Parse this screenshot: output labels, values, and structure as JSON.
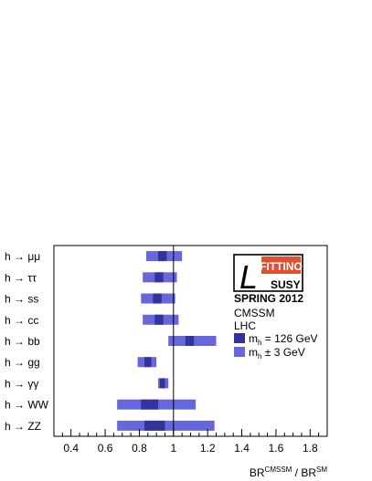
{
  "chart_data": {
    "type": "bar",
    "orientation": "horizontal-range",
    "xlabel": {
      "base": "BR",
      "sup1": "CMSSM",
      "sep": " / BR",
      "sup2": "SM"
    },
    "xlim": [
      0.3,
      1.9
    ],
    "xticks": [
      0.4,
      0.6,
      0.8,
      1.0,
      1.2,
      1.4,
      1.6,
      1.8
    ],
    "xtick_labels": [
      "0.4",
      "0.6",
      "0.8",
      "1",
      "1.2",
      "1.4",
      "1.6",
      "1.8"
    ],
    "reference_line": 1.0,
    "categories": [
      {
        "prefix": "h →",
        "final": "μμ"
      },
      {
        "prefix": "h →",
        "final": "ττ"
      },
      {
        "prefix": "h →",
        "final": "ss"
      },
      {
        "prefix": "h →",
        "final": "cc"
      },
      {
        "prefix": "h →",
        "final": "bb"
      },
      {
        "prefix": "h →",
        "final": "gg"
      },
      {
        "prefix": "h →",
        "final": "γγ"
      },
      {
        "prefix": "h →",
        "final": "WW"
      },
      {
        "prefix": "h →",
        "final": "ZZ"
      }
    ],
    "series": [
      {
        "name": "m_h ± 3 GeV",
        "color": "#6666dd",
        "ranges": [
          [
            0.84,
            1.05
          ],
          [
            0.82,
            1.02
          ],
          [
            0.81,
            1.01
          ],
          [
            0.82,
            1.03
          ],
          [
            0.97,
            1.25
          ],
          [
            0.79,
            0.9
          ],
          [
            0.91,
            0.97
          ],
          [
            0.67,
            1.13
          ],
          [
            0.67,
            1.24
          ]
        ]
      },
      {
        "name": "m_h = 126 GeV",
        "color": "#333399",
        "ranges": [
          [
            0.91,
            0.96
          ],
          [
            0.89,
            0.94
          ],
          [
            0.88,
            0.93
          ],
          [
            0.89,
            0.94
          ],
          [
            1.07,
            1.12
          ],
          [
            0.83,
            0.87
          ],
          [
            0.92,
            0.95
          ],
          [
            0.81,
            0.91
          ],
          [
            0.83,
            0.95
          ]
        ]
      }
    ],
    "legend": {
      "position": "top-right",
      "logo": {
        "brand": "FITTINO",
        "script": "L",
        "sub": "SUSY"
      },
      "caption": "SPRING 2012",
      "model": "CMSSM",
      "collider": "LHC",
      "entries": [
        {
          "pre": "m",
          "sub": "h",
          "post": " = 126 GeV",
          "color": "#333399"
        },
        {
          "pre": "m",
          "sub": "h",
          "post": " ± 3 GeV",
          "color": "#6666dd"
        }
      ]
    },
    "grid": false
  }
}
